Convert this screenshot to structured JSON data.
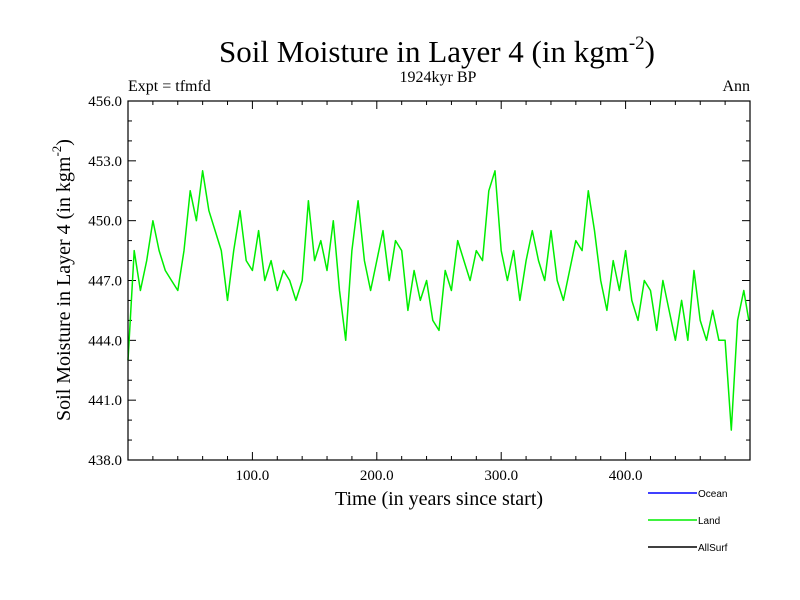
{
  "chart_data": {
    "type": "line",
    "title": "Soil Moisture in Layer 4 (in kgm",
    "title_sup": "-2",
    "title_close": ")",
    "subtitle": "1924kyr BP",
    "left_label": "Expt = tfmfd",
    "right_label": "Ann",
    "xlabel": "Time (in years since start)",
    "ylabel": "Soil Moisture in Layer 4 (in kgm",
    "ylabel_sup": "-2",
    "ylabel_close": ")",
    "xlim": [
      0,
      500
    ],
    "ylim": [
      438,
      456
    ],
    "xticks": [
      100,
      200,
      300,
      400
    ],
    "xtick_labels": [
      "100.0",
      "200.0",
      "300.0",
      "400.0"
    ],
    "yticks": [
      438,
      441,
      444,
      447,
      450,
      453,
      456
    ],
    "ytick_labels": [
      "438.0",
      "441.0",
      "444.0",
      "447.0",
      "450.0",
      "453.0",
      "456.0"
    ],
    "legend": {
      "placement": "bottom-right",
      "entries": [
        {
          "name": "Ocean",
          "color": "#0000ff"
        },
        {
          "name": "Land",
          "color": "#00ee00"
        },
        {
          "name": "AllSurf",
          "color": "#000000"
        }
      ]
    },
    "series": [
      {
        "name": "Land",
        "color": "#00ee00",
        "x": [
          0,
          5,
          10,
          15,
          20,
          25,
          30,
          35,
          40,
          45,
          50,
          55,
          60,
          65,
          70,
          75,
          80,
          85,
          90,
          95,
          100,
          105,
          110,
          115,
          120,
          125,
          130,
          135,
          140,
          145,
          150,
          155,
          160,
          165,
          170,
          175,
          180,
          185,
          190,
          195,
          200,
          205,
          210,
          215,
          220,
          225,
          230,
          235,
          240,
          245,
          250,
          255,
          260,
          265,
          270,
          275,
          280,
          285,
          290,
          295,
          300,
          305,
          310,
          315,
          320,
          325,
          330,
          335,
          340,
          345,
          350,
          355,
          360,
          365,
          370,
          375,
          380,
          385,
          390,
          395,
          400,
          405,
          410,
          415,
          420,
          425,
          430,
          435,
          440,
          445,
          450,
          455,
          460,
          465,
          470,
          475,
          480,
          485,
          490,
          495,
          499
        ],
        "values": [
          443.0,
          448.5,
          446.5,
          448.0,
          450.0,
          448.5,
          447.5,
          447.0,
          446.5,
          448.5,
          451.5,
          450.0,
          452.5,
          450.5,
          449.5,
          448.5,
          446.0,
          448.5,
          450.5,
          448.0,
          447.5,
          449.5,
          447.0,
          448.0,
          446.5,
          447.5,
          447.0,
          446.0,
          447.0,
          451.0,
          448.0,
          449.0,
          447.5,
          450.0,
          446.5,
          444.0,
          448.5,
          451.0,
          448.0,
          446.5,
          448.0,
          449.5,
          447.0,
          449.0,
          448.5,
          445.5,
          447.5,
          446.0,
          447.0,
          445.0,
          444.5,
          447.5,
          446.5,
          449.0,
          448.0,
          447.0,
          448.5,
          448.0,
          451.5,
          452.5,
          448.5,
          447.0,
          448.5,
          446.0,
          448.0,
          449.5,
          448.0,
          447.0,
          449.5,
          447.0,
          446.0,
          447.5,
          449.0,
          448.5,
          451.5,
          449.5,
          447.0,
          445.5,
          448.0,
          446.5,
          448.5,
          446.0,
          445.0,
          447.0,
          446.5,
          444.5,
          447.0,
          445.5,
          444.0,
          446.0,
          444.0,
          447.5,
          445.0,
          444.0,
          445.5,
          444.0,
          444.0,
          439.5,
          445.0,
          446.5,
          445.0
        ]
      }
    ]
  }
}
